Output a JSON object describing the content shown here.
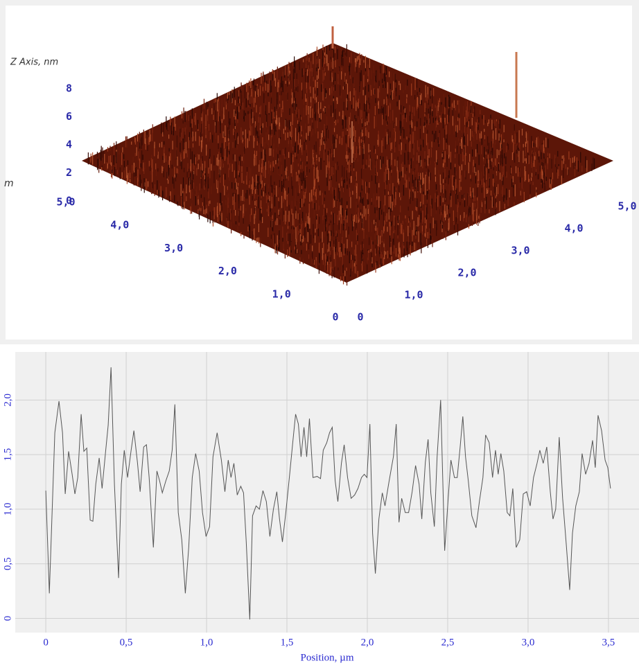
{
  "chart_data": [
    {
      "type": "surface3d",
      "zlabel": "Z Axis, nm",
      "left_axis_label": "m",
      "zlim": [
        0,
        8
      ],
      "zticks": [
        0,
        2,
        4,
        6,
        8
      ],
      "xlim": [
        0,
        5
      ],
      "xticks": [
        0,
        {
          "value": 1,
          "label": "1,0"
        },
        {
          "value": 2,
          "label": "2,0"
        },
        {
          "value": 3,
          "label": "3,0"
        },
        {
          "value": 4,
          "label": "4,0"
        },
        {
          "value": 5,
          "label": "5,0"
        }
      ],
      "ylim": [
        0,
        5
      ],
      "yticks": [
        0,
        {
          "value": 1,
          "label": "1,0"
        },
        {
          "value": 2,
          "label": "2,0"
        },
        {
          "value": 3,
          "label": "3,0"
        },
        {
          "value": 4,
          "label": "4,0"
        },
        {
          "value": 5,
          "label": "5,0"
        }
      ],
      "color": "#5c1608"
    },
    {
      "type": "line",
      "xlabel": "Position, µm",
      "color": "#555555",
      "grid": true,
      "xlim": [
        -0.19,
        3.69
      ],
      "ylim": [
        -0.13,
        2.44
      ],
      "xticks": [
        0,
        {
          "value": 0.5,
          "label": "0,5"
        },
        {
          "value": 1,
          "label": "1,0"
        },
        {
          "value": 1.5,
          "label": "1,5"
        },
        {
          "value": 2,
          "label": "2,0"
        },
        {
          "value": 2.5,
          "label": "2,5"
        },
        {
          "value": 3,
          "label": "3,0"
        },
        {
          "value": 3.5,
          "label": "3,5"
        }
      ],
      "yticks": [
        0,
        {
          "value": 0.5,
          "label": "0,5"
        },
        {
          "value": 1,
          "label": "1,0"
        },
        {
          "value": 1.5,
          "label": "1,5"
        },
        {
          "value": 2,
          "label": "2,0"
        }
      ],
      "x": [
        0,
        0.022,
        0.056,
        0.082,
        0.104,
        0.121,
        0.142,
        0.164,
        0.181,
        0.199,
        0.22,
        0.237,
        0.255,
        0.276,
        0.293,
        0.311,
        0.332,
        0.35,
        0.371,
        0.388,
        0.406,
        0.427,
        0.453,
        0.47,
        0.488,
        0.509,
        0.531,
        0.548,
        0.57,
        0.587,
        0.609,
        0.626,
        0.643,
        0.669,
        0.691,
        0.708,
        0.725,
        0.747,
        0.768,
        0.786,
        0.803,
        0.824,
        0.846,
        0.868,
        0.889,
        0.911,
        0.932,
        0.954,
        0.975,
        0.997,
        1.019,
        1.04,
        1.066,
        1.092,
        1.114,
        1.135,
        1.152,
        1.17,
        1.191,
        1.213,
        1.23,
        1.247,
        1.269,
        1.286,
        1.308,
        1.329,
        1.351,
        1.372,
        1.394,
        1.416,
        1.437,
        1.454,
        1.472,
        1.493,
        1.515,
        1.536,
        1.554,
        1.571,
        1.588,
        1.606,
        1.623,
        1.64,
        1.662,
        1.688,
        1.709,
        1.726,
        1.748,
        1.765,
        1.782,
        1.8,
        1.817,
        1.839,
        1.856,
        1.877,
        1.899,
        1.921,
        1.942,
        1.964,
        1.981,
        1.998,
        2.016,
        2.033,
        2.05,
        2.072,
        2.093,
        2.11,
        2.136,
        2.162,
        2.18,
        2.197,
        2.214,
        2.236,
        2.257,
        2.279,
        2.3,
        2.322,
        2.339,
        2.361,
        2.378,
        2.395,
        2.417,
        2.434,
        2.456,
        2.481,
        2.503,
        2.52,
        2.542,
        2.559,
        2.577,
        2.594,
        2.611,
        2.628,
        2.65,
        2.676,
        2.697,
        2.719,
        2.736,
        2.758,
        2.779,
        2.797,
        2.814,
        2.831,
        2.849,
        2.87,
        2.887,
        2.905,
        2.926,
        2.948,
        2.97,
        2.991,
        3.013,
        3.034,
        3.056,
        3.073,
        3.094,
        3.116,
        3.138,
        3.155,
        3.172,
        3.194,
        3.215,
        3.237,
        3.259,
        3.276,
        3.297,
        3.319,
        3.336,
        3.358,
        3.379,
        3.401,
        3.418,
        3.435,
        3.457,
        3.479,
        3.496,
        3.513
      ],
      "values": [
        1.17,
        0.23,
        1.7,
        1.99,
        1.7,
        1.14,
        1.53,
        1.32,
        1.14,
        1.29,
        1.87,
        1.53,
        1.56,
        0.9,
        0.89,
        1.23,
        1.47,
        1.19,
        1.51,
        1.77,
        2.3,
        1.23,
        0.37,
        1.23,
        1.54,
        1.29,
        1.54,
        1.72,
        1.43,
        1.16,
        1.57,
        1.59,
        1.29,
        0.65,
        1.35,
        1.26,
        1.15,
        1.26,
        1.35,
        1.54,
        1.96,
        0.97,
        0.72,
        0.23,
        0.65,
        1.29,
        1.51,
        1.35,
        0.97,
        0.75,
        0.84,
        1.48,
        1.7,
        1.45,
        1.16,
        1.45,
        1.29,
        1.42,
        1.13,
        1.21,
        1.15,
        0.7,
        -0.01,
        0.94,
        1.03,
        1.0,
        1.17,
        1.07,
        0.75,
        1.0,
        1.16,
        0.91,
        0.7,
        0.97,
        1.29,
        1.61,
        1.87,
        1.78,
        1.48,
        1.75,
        1.48,
        1.83,
        1.29,
        1.3,
        1.28,
        1.54,
        1.61,
        1.7,
        1.75,
        1.26,
        1.07,
        1.42,
        1.59,
        1.29,
        1.1,
        1.13,
        1.19,
        1.29,
        1.32,
        1.29,
        1.78,
        0.78,
        0.41,
        0.91,
        1.15,
        1.03,
        1.26,
        1.48,
        1.78,
        0.88,
        1.1,
        0.97,
        0.97,
        1.16,
        1.4,
        1.23,
        0.91,
        1.43,
        1.64,
        1.15,
        0.84,
        1.48,
        2.0,
        0.62,
        1.1,
        1.45,
        1.29,
        1.29,
        1.56,
        1.85,
        1.48,
        1.26,
        0.94,
        0.83,
        1.07,
        1.29,
        1.68,
        1.61,
        1.29,
        1.54,
        1.32,
        1.51,
        1.35,
        0.97,
        0.94,
        1.19,
        0.65,
        0.72,
        1.14,
        1.16,
        1.03,
        1.29,
        1.42,
        1.54,
        1.42,
        1.57,
        1.16,
        0.91,
        1.0,
        1.66,
        1.1,
        0.69,
        0.26,
        0.78,
        1.03,
        1.16,
        1.51,
        1.32,
        1.42,
        1.63,
        1.38,
        1.86,
        1.72,
        1.45,
        1.38,
        1.19
      ]
    }
  ]
}
